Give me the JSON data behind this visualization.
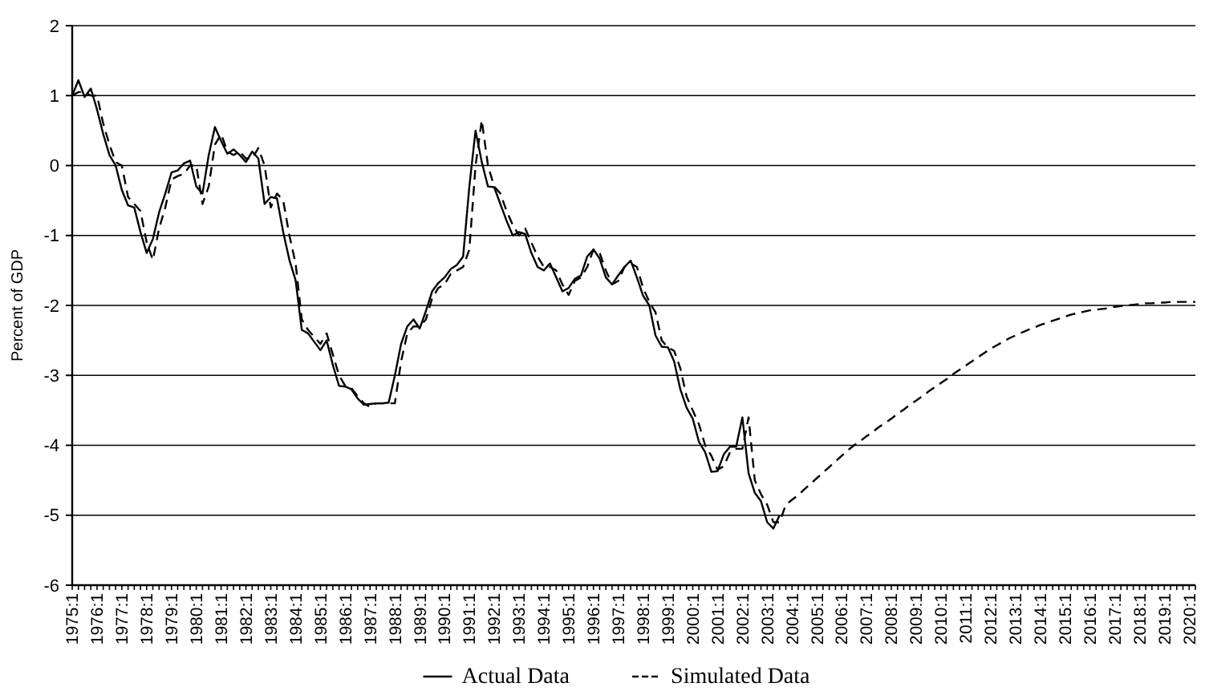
{
  "chart_data": {
    "type": "line",
    "ylabel": "Percent of GDP",
    "ylim": [
      -6,
      2
    ],
    "yticks": [
      -6,
      -5,
      -4,
      -3,
      -2,
      -1,
      0,
      1,
      2
    ],
    "categories": [
      "1975:1",
      null,
      null,
      null,
      "1976:1",
      null,
      null,
      null,
      "1977:1",
      null,
      null,
      null,
      "1978:1",
      null,
      null,
      null,
      "1979:1",
      null,
      null,
      null,
      "1980:1",
      null,
      null,
      null,
      "1981:1",
      null,
      null,
      null,
      "1982:1",
      null,
      null,
      null,
      "1983:1",
      null,
      null,
      null,
      "1984:1",
      null,
      null,
      null,
      "1985:1",
      null,
      null,
      null,
      "1986:1",
      null,
      null,
      null,
      "1987:1",
      null,
      null,
      null,
      "1988:1",
      null,
      null,
      null,
      "1989:1",
      null,
      null,
      null,
      "1990:1",
      null,
      null,
      null,
      "1991:1",
      null,
      null,
      null,
      "1992:1",
      null,
      null,
      null,
      "1993:1",
      null,
      null,
      null,
      "1994:1",
      null,
      null,
      null,
      "1995:1",
      null,
      null,
      null,
      "1996:1",
      null,
      null,
      null,
      "1997:1",
      null,
      null,
      null,
      "1998:1",
      null,
      null,
      null,
      "1999:1",
      null,
      null,
      null,
      "2000:1",
      null,
      null,
      null,
      "2001:1",
      null,
      null,
      null,
      "2002:1",
      null,
      null,
      null,
      "2003:1",
      null,
      null,
      null,
      "2004:1",
      null,
      null,
      null,
      "2005:1",
      null,
      null,
      null,
      "2006:1",
      null,
      null,
      null,
      "2007:1",
      null,
      null,
      null,
      "2008:1",
      null,
      null,
      null,
      "2009:1",
      null,
      null,
      null,
      "2010:1",
      null,
      null,
      null,
      "2011:1",
      null,
      null,
      null,
      "2012:1",
      null,
      null,
      null,
      "2013:1",
      null,
      null,
      null,
      "2014:1",
      null,
      null,
      null,
      "2015:1",
      null,
      null,
      null,
      "2016:1",
      null,
      null,
      null,
      "2017:1",
      null,
      null,
      null,
      "2018:1",
      null,
      null,
      null,
      "2019:1",
      null,
      null,
      null,
      "2020:1",
      null
    ],
    "grid": "y",
    "legend": "bottom",
    "series": [
      {
        "name": "Actual Data",
        "color": "#000000",
        "line_style": "solid",
        "values": [
          1.0,
          1.22,
          0.98,
          1.1,
          0.8,
          0.45,
          0.15,
          0.0,
          -0.35,
          -0.57,
          -0.6,
          -0.95,
          -1.25,
          -1.05,
          -0.67,
          -0.4,
          -0.1,
          -0.07,
          0.03,
          0.07,
          -0.3,
          -0.4,
          0.15,
          0.55,
          0.35,
          0.17,
          0.23,
          0.15,
          0.05,
          0.2,
          0.1,
          -0.55,
          -0.45,
          -0.47,
          -0.95,
          -1.35,
          -1.64,
          -2.35,
          -2.4,
          -2.52,
          -2.64,
          -2.5,
          -2.85,
          -3.15,
          -3.16,
          -3.2,
          -3.33,
          -3.42,
          -3.41,
          -3.4,
          -3.4,
          -3.39,
          -3.0,
          -2.55,
          -2.3,
          -2.2,
          -2.33,
          -2.08,
          -1.8,
          -1.68,
          -1.6,
          -1.48,
          -1.42,
          -1.3,
          -0.3,
          0.5,
          0.05,
          -0.3,
          -0.31,
          -0.55,
          -0.79,
          -1.0,
          -0.95,
          -0.98,
          -1.25,
          -1.45,
          -1.5,
          -1.4,
          -1.6,
          -1.8,
          -1.75,
          -1.62,
          -1.57,
          -1.3,
          -1.2,
          -1.33,
          -1.6,
          -1.7,
          -1.57,
          -1.45,
          -1.36,
          -1.6,
          -1.86,
          -2.0,
          -2.43,
          -2.59,
          -2.6,
          -2.8,
          -3.2,
          -3.46,
          -3.62,
          -3.95,
          -4.1,
          -4.38,
          -4.37,
          -4.13,
          -4.02,
          -4.02,
          -3.6,
          -4.4,
          -4.68,
          -4.8,
          -5.1,
          -5.19,
          -5.0,
          null,
          null,
          null,
          null,
          null,
          null,
          null,
          null,
          null,
          null,
          null,
          null,
          null,
          null,
          null,
          null,
          null,
          null,
          null,
          null,
          null,
          null,
          null,
          null,
          null,
          null,
          null,
          null,
          null,
          null,
          null,
          null,
          null,
          null,
          null,
          null,
          null,
          null,
          null,
          null,
          null,
          null,
          null,
          null,
          null,
          null,
          null,
          null,
          null,
          null,
          null,
          null,
          null,
          null,
          null,
          null,
          null,
          null,
          null,
          null,
          null,
          null,
          null,
          null,
          null,
          null,
          null
        ]
      },
      {
        "name": "Simulated Data",
        "color": "#000000",
        "line_style": "dashed",
        "values": [
          1.0,
          1.05,
          1.05,
          1.0,
          1.0,
          0.6,
          0.3,
          0.05,
          0.0,
          -0.45,
          -0.55,
          -0.65,
          -1.1,
          -1.35,
          -0.9,
          -0.6,
          -0.2,
          -0.15,
          -0.12,
          0.0,
          0.0,
          -0.55,
          -0.3,
          0.3,
          0.45,
          0.2,
          0.15,
          0.2,
          0.1,
          0.1,
          0.25,
          0.0,
          -0.6,
          -0.4,
          -0.5,
          -1.0,
          -1.4,
          -2.2,
          -2.35,
          -2.45,
          -2.55,
          -2.4,
          -2.7,
          -3.0,
          -3.15,
          -3.18,
          -3.3,
          -3.4,
          -3.45,
          -3.4,
          -3.4,
          -3.4,
          -3.4,
          -2.8,
          -2.4,
          -2.3,
          -2.3,
          -2.2,
          -1.9,
          -1.75,
          -1.7,
          -1.55,
          -1.5,
          -1.45,
          -1.2,
          0.0,
          0.65,
          0.0,
          -0.3,
          -0.4,
          -0.65,
          -0.85,
          -1.0,
          -0.9,
          -1.1,
          -1.3,
          -1.45,
          -1.45,
          -1.5,
          -1.7,
          -1.85,
          -1.65,
          -1.6,
          -1.45,
          -1.2,
          -1.25,
          -1.5,
          -1.7,
          -1.65,
          -1.45,
          -1.4,
          -1.45,
          -1.75,
          -1.95,
          -2.1,
          -2.5,
          -2.6,
          -2.65,
          -2.9,
          -3.3,
          -3.5,
          -3.7,
          -4.0,
          -4.15,
          -4.35,
          -4.3,
          -4.1,
          -4.05,
          -4.05,
          -3.6,
          -4.5,
          -4.7,
          -4.85,
          -5.1,
          -5.1,
          -4.85,
          -4.78,
          -4.71,
          -4.63,
          -4.55,
          -4.47,
          -4.39,
          -4.31,
          -4.23,
          -4.15,
          -4.07,
          -4.0,
          -3.94,
          -3.87,
          -3.81,
          -3.74,
          -3.68,
          -3.62,
          -3.55,
          -3.49,
          -3.42,
          -3.36,
          -3.3,
          -3.23,
          -3.17,
          -3.11,
          -3.05,
          -2.98,
          -2.92,
          -2.86,
          -2.8,
          -2.74,
          -2.68,
          -2.62,
          -2.57,
          -2.52,
          -2.47,
          -2.43,
          -2.39,
          -2.35,
          -2.32,
          -2.28,
          -2.25,
          -2.22,
          -2.19,
          -2.16,
          -2.13,
          -2.11,
          -2.09,
          -2.07,
          -2.06,
          -2.05,
          -2.04,
          -2.02,
          -2.01,
          -2.0,
          -1.99,
          -1.98,
          -1.97,
          -1.97,
          -1.96,
          -1.96,
          -1.95,
          -1.95,
          -1.95,
          -1.95,
          -1.95
        ]
      }
    ]
  }
}
